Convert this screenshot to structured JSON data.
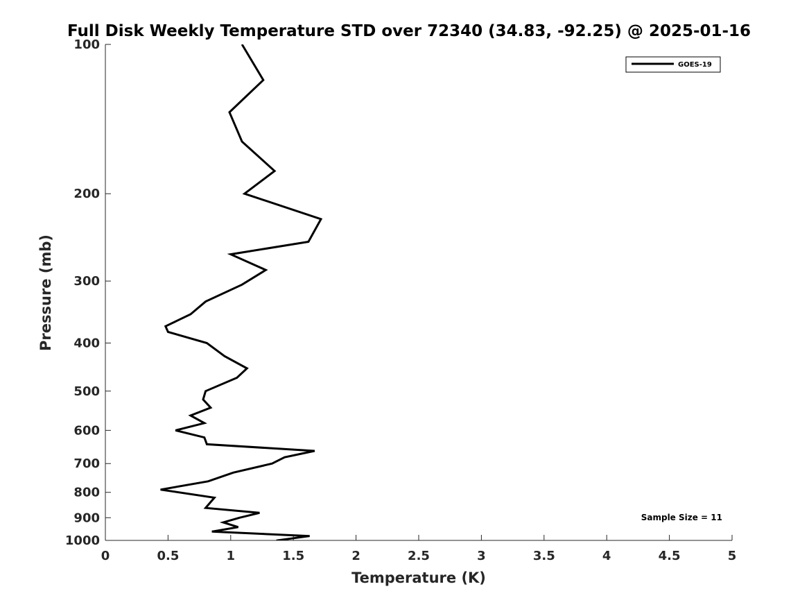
{
  "chart_data": {
    "type": "line",
    "title": "Full Disk Weekly Temperature STD over 72340 (34.83, -92.25) @ 2025-01-16",
    "xlabel": "Temperature (K)",
    "ylabel": "Pressure (mb)",
    "xlim": [
      0,
      5
    ],
    "ylim": [
      100,
      1000
    ],
    "yscale": "log",
    "y_reversed": true,
    "x_ticks": [
      0,
      0.5,
      1,
      1.5,
      2,
      2.5,
      3,
      3.5,
      4,
      4.5,
      5
    ],
    "x_tick_labels": [
      "0",
      "0.5",
      "1",
      "1.5",
      "2",
      "2.5",
      "3",
      "3.5",
      "4",
      "4.5",
      "5"
    ],
    "y_ticks": [
      100,
      200,
      300,
      400,
      500,
      600,
      700,
      800,
      900,
      1000
    ],
    "y_tick_labels": [
      "100",
      "200",
      "300",
      "400",
      "500",
      "600",
      "700",
      "800",
      "900",
      "1000"
    ],
    "legend": {
      "position": "top-right",
      "entries": [
        "GOES-19"
      ]
    },
    "annotation": "Sample Size = 11",
    "series": [
      {
        "name": "GOES-19",
        "color": "#000000",
        "x": [
          1.09,
          1.26,
          0.99,
          1.09,
          1.35,
          1.11,
          1.72,
          1.62,
          1.0,
          1.28,
          1.09,
          0.8,
          0.68,
          0.48,
          0.5,
          0.81,
          0.95,
          1.13,
          1.05,
          0.8,
          0.78,
          0.84,
          0.68,
          0.79,
          0.56,
          0.79,
          0.81,
          1.67,
          1.43,
          1.33,
          1.02,
          0.82,
          0.44,
          0.87,
          0.8,
          1.23,
          1.07,
          0.94,
          1.06,
          0.85,
          1.63,
          1.37,
          1.35
        ],
        "y": [
          100,
          118,
          137,
          157,
          180,
          200,
          225,
          250,
          265,
          285,
          305,
          330,
          350,
          370,
          380,
          400,
          425,
          450,
          470,
          500,
          520,
          540,
          560,
          580,
          600,
          620,
          640,
          660,
          680,
          700,
          730,
          760,
          790,
          820,
          860,
          880,
          900,
          920,
          940,
          960,
          980,
          1000,
          1010
        ]
      }
    ]
  }
}
